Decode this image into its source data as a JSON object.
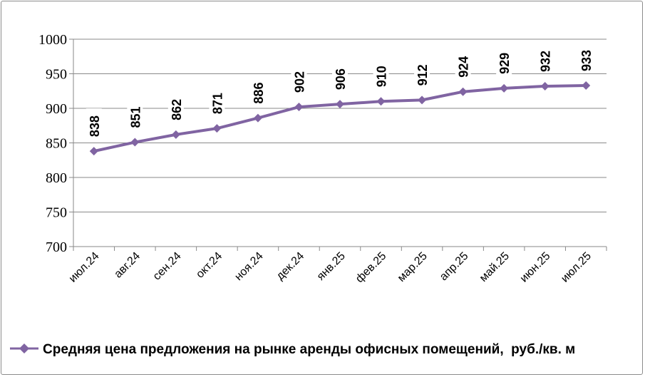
{
  "chart_data": {
    "type": "line",
    "categories": [
      "июл.24",
      "авг.24",
      "сен.24",
      "окт.24",
      "ноя.24",
      "дек.24",
      "янв.25",
      "фев.25",
      "мар.25",
      "апр.25",
      "май.25",
      "июн.25",
      "июл.25"
    ],
    "series": [
      {
        "name": "Средняя цена предложения на рынке аренды офисных помещений,  руб./кв. м",
        "values": [
          838,
          851,
          862,
          871,
          886,
          902,
          906,
          910,
          912,
          924,
          929,
          932,
          933
        ],
        "color": "#8064A2",
        "marker": "diamond"
      }
    ],
    "ylim": [
      700,
      1000
    ],
    "yticks": [
      700,
      750,
      800,
      850,
      900,
      950,
      1000
    ],
    "grid": true,
    "legend_position": "bottom-left",
    "data_labels": true
  }
}
